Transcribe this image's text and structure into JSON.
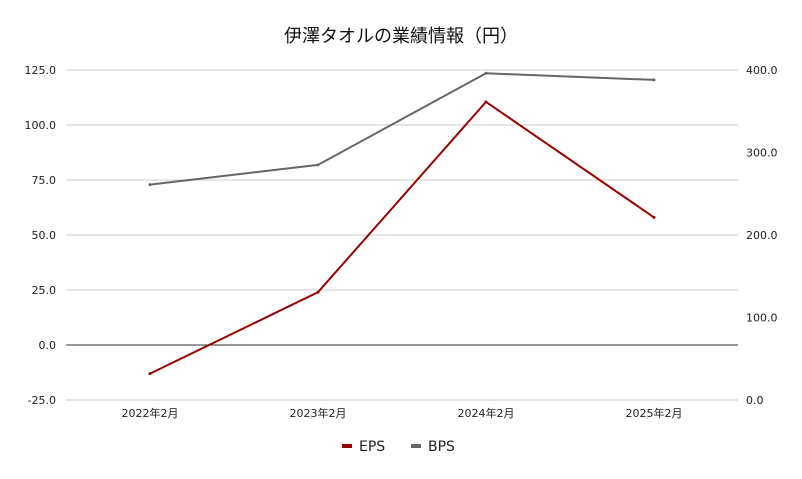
{
  "chart_data": {
    "type": "line",
    "title": "伊澤タオルの業績情報（円）",
    "categories": [
      "2022年2月",
      "2023年2月",
      "2024年2月",
      "2025年2月"
    ],
    "series": [
      {
        "name": "EPS",
        "axis": "left",
        "color": "#990000",
        "values": [
          -13,
          24,
          110.5,
          58
        ]
      },
      {
        "name": "BPS",
        "axis": "right",
        "color": "#666666",
        "values": [
          261,
          285,
          396,
          388
        ]
      }
    ],
    "y_left": {
      "min": -25,
      "max": 125,
      "ticks": [
        "125.0",
        "100.0",
        "75.0",
        "50.0",
        "25.0",
        "0.0",
        "-25.0"
      ]
    },
    "y_right": {
      "min": 0,
      "max": 400,
      "ticks": [
        "400.0",
        "300.0",
        "200.0",
        "100.0",
        "0.0"
      ]
    },
    "grid": true,
    "legend_position": "bottom"
  }
}
